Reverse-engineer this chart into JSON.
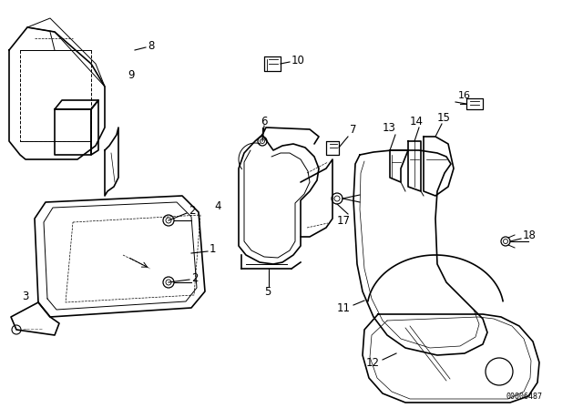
{
  "background_color": "#ffffff",
  "diagram_id": "00006487",
  "figsize": [
    6.4,
    4.48
  ],
  "dpi": 100
}
